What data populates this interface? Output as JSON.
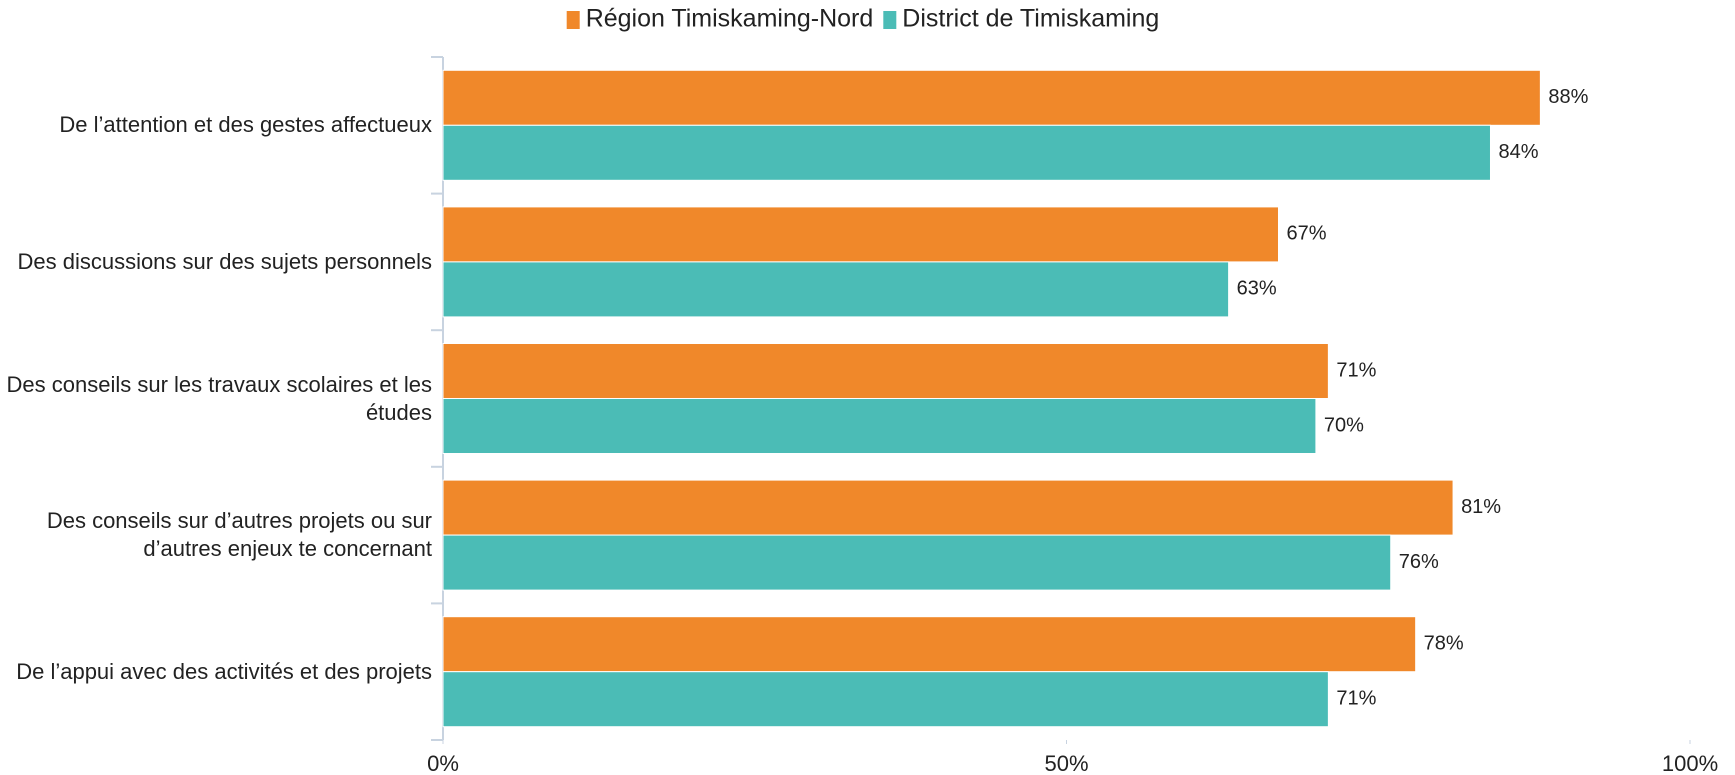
{
  "chart_data": {
    "type": "hbar",
    "categories": [
      "De l’attention et des gestes affectueux",
      "Des discussions sur des sujets personnels",
      "Des conseils sur les travaux scolaires et les études",
      "Des conseils sur d’autres projets ou sur d’autres enjeux te concernant",
      "De l’appui avec des activités et des projets"
    ],
    "series": [
      {
        "name": "Région Timiskaming-Nord",
        "color": "#f0882a",
        "values": [
          88,
          67,
          71,
          81,
          78
        ],
        "value_labels": [
          "88%",
          "67%",
          "71%",
          "81%",
          "78%"
        ]
      },
      {
        "name": "District de Timiskaming",
        "color": "#4bbcb6",
        "values": [
          84,
          63,
          70,
          76,
          71
        ],
        "value_labels": [
          "84%",
          "63%",
          "70%",
          "76%",
          "71%"
        ]
      }
    ],
    "xlim": [
      0,
      100
    ],
    "xticks": [
      {
        "value": 0,
        "label": "0%"
      },
      {
        "value": 50,
        "label": "50%"
      },
      {
        "value": 100,
        "label": "100%"
      }
    ],
    "grid": false,
    "legend": "top"
  }
}
